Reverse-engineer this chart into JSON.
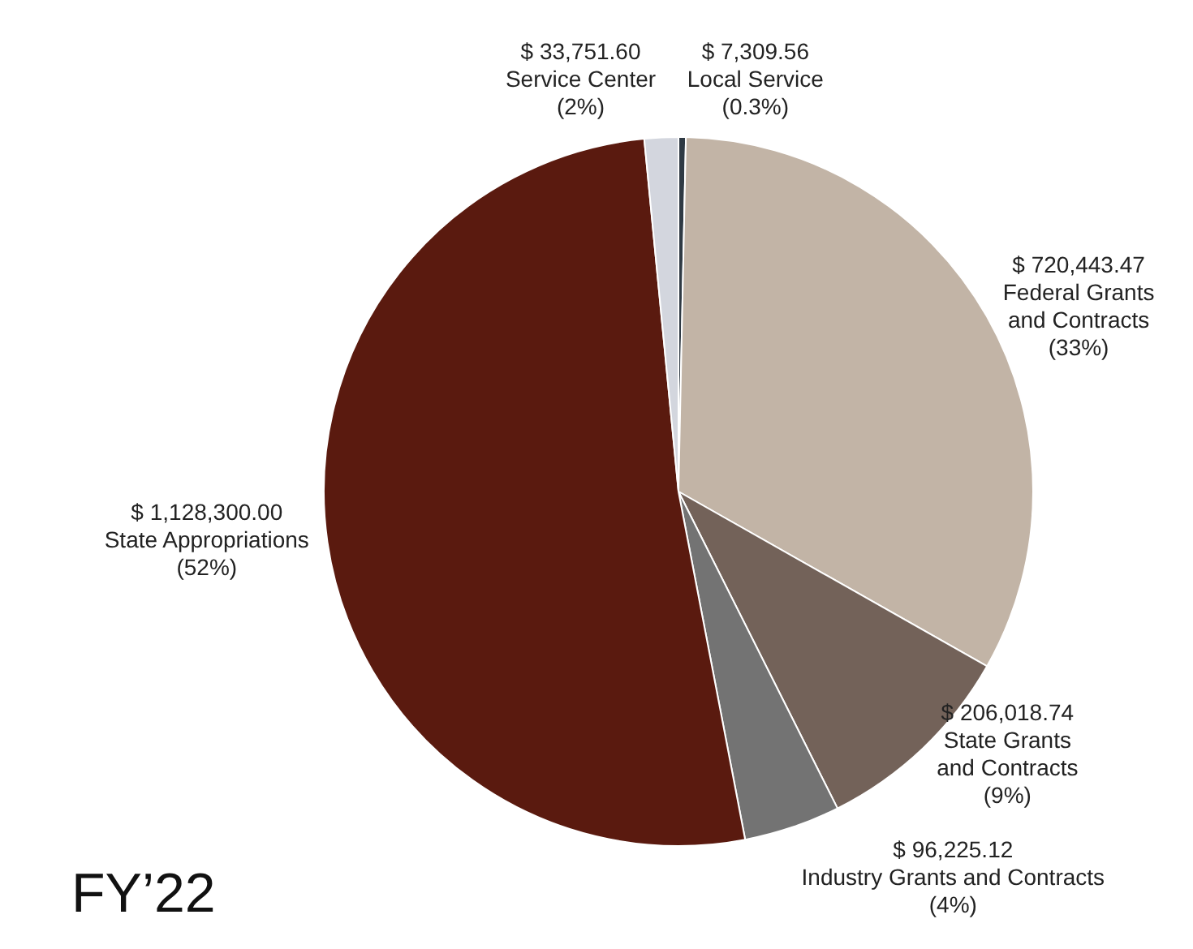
{
  "chart_data": {
    "type": "pie",
    "title": "FY’22",
    "categories": [
      "Local Service\n(0.3%)",
      "Federal Grants\nand Contracts\n(33%)",
      "State Grants\nand Contracts\n(9%)",
      "Industry Grants and Contracts\n(4%)",
      "State Appropriations\n(52%)",
      "Service Center\n(2%)"
    ],
    "values": [
      7309.56,
      720443.47,
      206018.74,
      96225.12,
      1128300.0,
      33751.6
    ],
    "value_labels": [
      "$ 7,309.56",
      "$ 720,443.47",
      "$ 206,018.74",
      "$ 96,225.12",
      "$ 1,128,300.00",
      "$ 33,751.60"
    ],
    "colors": [
      "#2f3a44",
      "#c2b4a6",
      "#736259",
      "#737373",
      "#5a1a0f",
      "#d3d6de"
    ],
    "legend": false
  }
}
